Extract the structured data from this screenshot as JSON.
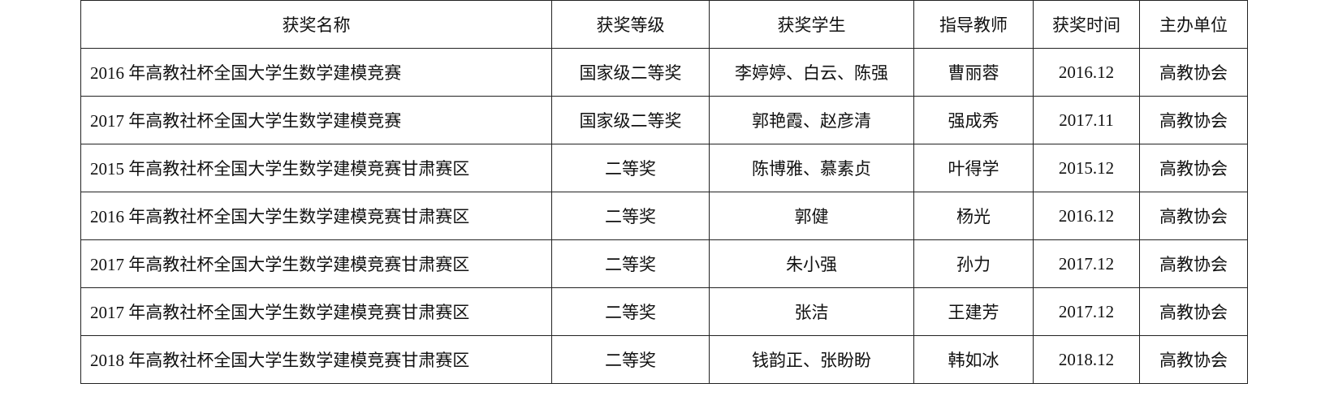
{
  "table": {
    "header": [
      "获奖名称",
      "获奖等级",
      "获奖学生",
      "指导教师",
      "获奖时间",
      "主办单位"
    ],
    "rows": [
      [
        "2016 年高教社杯全国大学生数学建模竞赛",
        "国家级二等奖",
        "李婷婷、白云、陈强",
        "曹丽蓉",
        "2016.12",
        "高教协会"
      ],
      [
        "2017 年高教社杯全国大学生数学建模竞赛",
        "国家级二等奖",
        "郭艳霞、赵彦清",
        "强成秀",
        "2017.11",
        "高教协会"
      ],
      [
        "2015 年高教社杯全国大学生数学建模竞赛甘肃赛区",
        "二等奖",
        "陈博雅、慕素贞",
        "叶得学",
        "2015.12",
        "高教协会"
      ],
      [
        "2016 年高教社杯全国大学生数学建模竞赛甘肃赛区",
        "二等奖",
        "郭健",
        "杨光",
        "2016.12",
        "高教协会"
      ],
      [
        "2017 年高教社杯全国大学生数学建模竞赛甘肃赛区",
        "二等奖",
        "朱小强",
        "孙力",
        "2017.12",
        "高教协会"
      ],
      [
        "2017 年高教社杯全国大学生数学建模竞赛甘肃赛区",
        "二等奖",
        "张洁",
        "王建芳",
        "2017.12",
        "高教协会"
      ],
      [
        "2018 年高教社杯全国大学生数学建模竞赛甘肃赛区",
        "二等奖",
        "钱韵正、张盼盼",
        "韩如冰",
        "2018.12",
        "高教协会"
      ]
    ]
  }
}
